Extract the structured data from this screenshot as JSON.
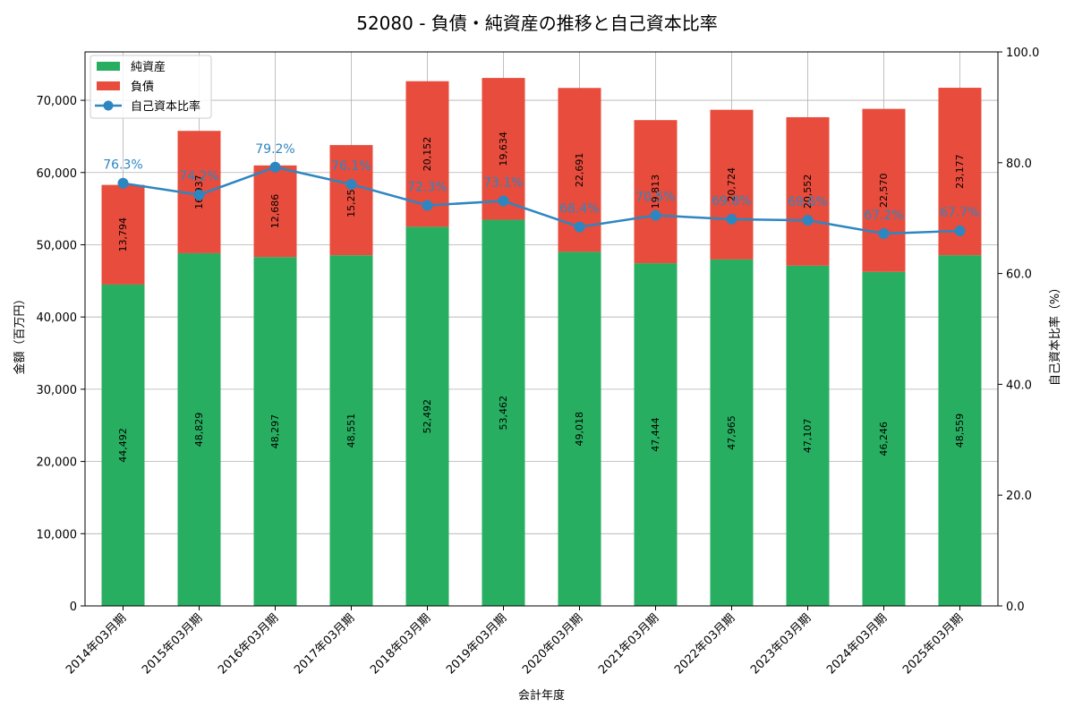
{
  "chart_data": {
    "type": "bar",
    "stacked": true,
    "title": "52080 - 負債・純資産の推移と自己資本比率",
    "xlabel": "会計年度",
    "ylabel": "金額（百万円）",
    "y2label": "自己資本比率（%）",
    "ylim": [
      0,
      76700
    ],
    "y2lim": [
      0,
      100
    ],
    "yticks": [
      0,
      10000,
      20000,
      30000,
      40000,
      50000,
      60000,
      70000
    ],
    "ytick_labels": [
      "0",
      "10,000",
      "20,000",
      "30,000",
      "40,000",
      "50,000",
      "60,000",
      "70,000"
    ],
    "y2ticks": [
      0,
      20,
      40,
      60,
      80,
      100
    ],
    "y2tick_labels": [
      "0.0",
      "20.0",
      "40.0",
      "60.0",
      "80.0",
      "100.0"
    ],
    "grid": true,
    "legend_position": "top-left",
    "categories": [
      "2014年03月期",
      "2015年03月期",
      "2016年03月期",
      "2017年03月期",
      "2018年03月期",
      "2019年03月期",
      "2020年03月期",
      "2021年03月期",
      "2022年03月期",
      "2023年03月期",
      "2024年03月期",
      "2025年03月期"
    ],
    "series": [
      {
        "name": "純資産",
        "kind": "bar",
        "color": "#27ae60",
        "values": [
          44492,
          48829,
          48297,
          48551,
          52492,
          53462,
          49018,
          47444,
          47965,
          47107,
          46246,
          48559
        ],
        "labels": [
          "44,492",
          "48,829",
          "48,297",
          "48,551",
          "52,492",
          "53,462",
          "49,018",
          "47,444",
          "47,965",
          "47,107",
          "46,246",
          "48,559"
        ]
      },
      {
        "name": "負債",
        "kind": "bar",
        "color": "#e74c3c",
        "values": [
          13794,
          16937,
          12686,
          15251,
          20152,
          19634,
          22691,
          19813,
          20724,
          20552,
          22570,
          23177
        ],
        "labels": [
          "13,794",
          "16,937",
          "12,686",
          "15,251",
          "20,152",
          "19,634",
          "22,691",
          "19,813",
          "20,724",
          "20,552",
          "22,570",
          "23,177"
        ]
      },
      {
        "name": "自己資本比率",
        "kind": "line",
        "axis": "right",
        "color": "#2e86c1",
        "values": [
          76.3,
          74.2,
          79.2,
          76.1,
          72.3,
          73.1,
          68.4,
          70.5,
          69.8,
          69.6,
          67.2,
          67.7
        ],
        "labels": [
          "76.3%",
          "74.2%",
          "79.2%",
          "76.1%",
          "72.3%",
          "73.1%",
          "68.4%",
          "70.5%",
          "69.8%",
          "69.6%",
          "67.2%",
          "67.7%"
        ]
      }
    ]
  }
}
